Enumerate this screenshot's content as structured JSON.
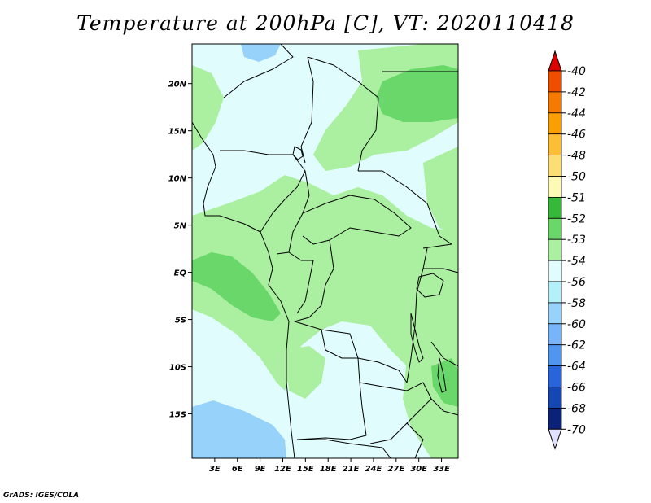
{
  "title": "Temperature at 200hPa [C], VT: 2020110418",
  "credit": "GrADS: IGES/COLA",
  "map": {
    "lon_ticks": [
      "3E",
      "6E",
      "9E",
      "12E",
      "15E",
      "18E",
      "21E",
      "24E",
      "27E",
      "30E",
      "33E"
    ],
    "lat_ticks": [
      "20N",
      "15N",
      "10N",
      "5N",
      "EQ",
      "5S",
      "10S",
      "15S"
    ],
    "lon_values": [
      3,
      6,
      9,
      12,
      15,
      18,
      21,
      24,
      27,
      30,
      33
    ],
    "lat_values": [
      20,
      15,
      10,
      5,
      0,
      -5,
      -10,
      -15
    ]
  },
  "colorbar": {
    "labels": [
      "-40",
      "-42",
      "-44",
      "-46",
      "-48",
      "-50",
      "-51",
      "-52",
      "-53",
      "-54",
      "-56",
      "-58",
      "-60",
      "-62",
      "-64",
      "-66",
      "-68",
      "-70"
    ],
    "colors": [
      "#e61e00",
      "#f04d00",
      "#f77a00",
      "#f9a000",
      "#fbbe35",
      "#fcde74",
      "#fef9b4",
      "#36b83a",
      "#6ad76a",
      "#aaf0a0",
      "#e0fcfc",
      "#b4f0fa",
      "#96d2fa",
      "#78b4fa",
      "#5096f0",
      "#2864dc",
      "#1446b4",
      "#0a2378",
      "#08004a"
    ],
    "top_color": "#dc0000",
    "bottom_color": "#e1e1ff"
  },
  "field_colors": {
    "base": "#e0fcfc",
    "light_green": "#aaf0a0",
    "green": "#6ad76a",
    "blue": "#96d2fa"
  }
}
